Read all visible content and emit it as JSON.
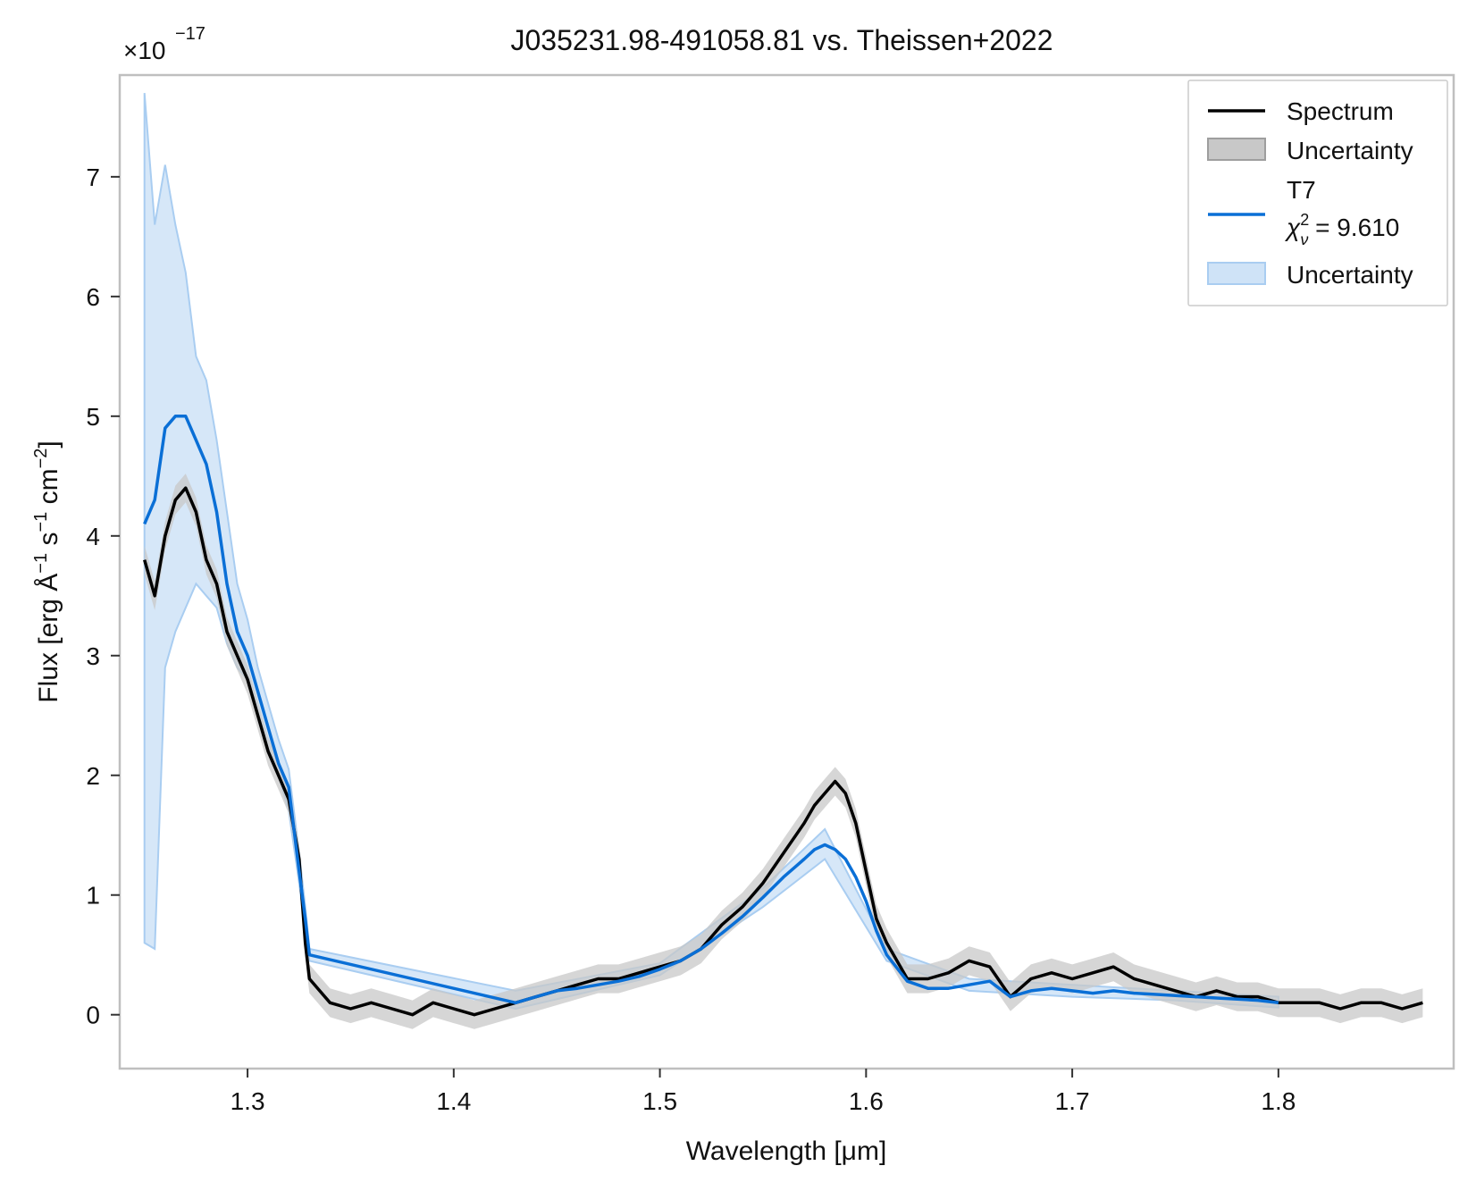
{
  "chart_data": {
    "type": "line",
    "title": "J035231.98-491058.81 vs. Theissen+2022",
    "xlabel": "Wavelength [μm]",
    "ylabel_main": "Flux [erg Å",
    "ylabel_exp1": "−1",
    "ylabel_s": " s",
    "ylabel_exp2": "−1",
    "ylabel_cm": " cm",
    "ylabel_exp3": "−2",
    "ylabel_close": "]",
    "offset_base": "×10",
    "offset_exp": "−17",
    "xlim": [
      1.238,
      1.885
    ],
    "ylim": [
      -0.45,
      7.85
    ],
    "x_ticks": [
      1.3,
      1.4,
      1.5,
      1.6,
      1.7,
      1.8
    ],
    "x_tick_labels": [
      "1.3",
      "1.4",
      "1.5",
      "1.6",
      "1.7",
      "1.8"
    ],
    "y_ticks": [
      0,
      1,
      2,
      3,
      4,
      5,
      6,
      7
    ],
    "y_tick_labels": [
      "0",
      "1",
      "2",
      "3",
      "4",
      "5",
      "6",
      "7"
    ],
    "grid": false,
    "legend_position": "top-right",
    "legend": {
      "spectrum": "Spectrum",
      "spectrum_unc": "Uncertainty",
      "model": "T7",
      "chi_symbol": "χ",
      "chi_sup": "2",
      "chi_sub": "ν",
      "chi_value": " = 9.610",
      "model_unc": "Uncertainty"
    },
    "colors": {
      "spectrum": "#000000",
      "spectrum_band": "#9e9e9e",
      "model": "#0a6fd6",
      "model_band": "#a9cdf1",
      "axes": "#bfbfbf"
    },
    "series": [
      {
        "name": "Spectrum",
        "x": [
          1.25,
          1.255,
          1.26,
          1.265,
          1.27,
          1.275,
          1.28,
          1.285,
          1.29,
          1.295,
          1.3,
          1.305,
          1.31,
          1.315,
          1.32,
          1.325,
          1.328,
          1.33,
          1.335,
          1.34,
          1.35,
          1.36,
          1.37,
          1.38,
          1.39,
          1.4,
          1.41,
          1.42,
          1.43,
          1.44,
          1.45,
          1.46,
          1.47,
          1.48,
          1.49,
          1.5,
          1.51,
          1.52,
          1.53,
          1.54,
          1.55,
          1.56,
          1.57,
          1.575,
          1.58,
          1.585,
          1.59,
          1.595,
          1.6,
          1.605,
          1.61,
          1.62,
          1.63,
          1.64,
          1.65,
          1.66,
          1.67,
          1.68,
          1.69,
          1.7,
          1.71,
          1.72,
          1.73,
          1.74,
          1.75,
          1.76,
          1.77,
          1.78,
          1.79,
          1.8,
          1.81,
          1.82,
          1.83,
          1.84,
          1.85,
          1.86,
          1.87
        ],
        "y": [
          3.8,
          3.5,
          4.0,
          4.3,
          4.4,
          4.2,
          3.8,
          3.6,
          3.2,
          3.0,
          2.8,
          2.5,
          2.2,
          2.0,
          1.8,
          1.3,
          0.6,
          0.3,
          0.2,
          0.1,
          0.05,
          0.1,
          0.05,
          0.0,
          0.1,
          0.05,
          0.0,
          0.05,
          0.1,
          0.15,
          0.2,
          0.25,
          0.3,
          0.3,
          0.35,
          0.4,
          0.45,
          0.55,
          0.75,
          0.9,
          1.1,
          1.35,
          1.6,
          1.75,
          1.85,
          1.95,
          1.85,
          1.6,
          1.2,
          0.8,
          0.6,
          0.3,
          0.3,
          0.35,
          0.45,
          0.4,
          0.15,
          0.3,
          0.35,
          0.3,
          0.35,
          0.4,
          0.3,
          0.25,
          0.2,
          0.15,
          0.2,
          0.15,
          0.15,
          0.1,
          0.1,
          0.1,
          0.05,
          0.1,
          0.1,
          0.05,
          0.1
        ]
      },
      {
        "name": "T7",
        "x": [
          1.25,
          1.255,
          1.26,
          1.265,
          1.27,
          1.275,
          1.28,
          1.285,
          1.29,
          1.295,
          1.3,
          1.305,
          1.31,
          1.315,
          1.32,
          1.325,
          1.328,
          1.33,
          1.43,
          1.44,
          1.45,
          1.46,
          1.47,
          1.48,
          1.49,
          1.5,
          1.51,
          1.52,
          1.53,
          1.54,
          1.55,
          1.56,
          1.57,
          1.575,
          1.58,
          1.585,
          1.59,
          1.595,
          1.6,
          1.605,
          1.61,
          1.62,
          1.63,
          1.64,
          1.65,
          1.66,
          1.67,
          1.68,
          1.69,
          1.7,
          1.71,
          1.72,
          1.73,
          1.74,
          1.75,
          1.76,
          1.77,
          1.78,
          1.79,
          1.8
        ],
        "y": [
          4.1,
          4.3,
          4.9,
          5.0,
          5.0,
          4.8,
          4.6,
          4.2,
          3.6,
          3.2,
          3.0,
          2.7,
          2.4,
          2.1,
          1.9,
          1.2,
          0.8,
          0.5,
          0.1,
          0.15,
          0.2,
          0.22,
          0.25,
          0.28,
          0.32,
          0.38,
          0.45,
          0.55,
          0.68,
          0.82,
          0.98,
          1.15,
          1.3,
          1.38,
          1.42,
          1.38,
          1.3,
          1.15,
          0.95,
          0.7,
          0.5,
          0.28,
          0.22,
          0.22,
          0.25,
          0.28,
          0.15,
          0.2,
          0.22,
          0.2,
          0.18,
          0.2,
          0.18,
          0.17,
          0.16,
          0.15,
          0.14,
          0.13,
          0.12,
          0.1
        ]
      }
    ],
    "model_uncertainty_band": {
      "x": [
        1.25,
        1.255,
        1.26,
        1.265,
        1.27,
        1.275,
        1.28,
        1.285,
        1.29,
        1.295,
        1.3,
        1.305,
        1.31,
        1.315,
        1.32,
        1.325,
        1.328,
        1.33,
        1.43,
        1.5,
        1.55,
        1.58,
        1.61,
        1.65,
        1.7,
        1.75,
        1.8
      ],
      "lower": [
        0.6,
        0.55,
        2.9,
        3.2,
        3.4,
        3.6,
        3.5,
        3.4,
        3.1,
        2.9,
        2.8,
        2.5,
        2.2,
        2.0,
        1.7,
        1.1,
        0.7,
        0.45,
        0.05,
        0.33,
        0.9,
        1.3,
        0.45,
        0.2,
        0.15,
        0.12,
        0.06
      ],
      "upper": [
        7.7,
        6.6,
        7.1,
        6.6,
        6.2,
        5.5,
        5.3,
        4.8,
        4.2,
        3.6,
        3.3,
        2.9,
        2.6,
        2.3,
        2.05,
        1.35,
        0.9,
        0.55,
        0.2,
        0.43,
        1.06,
        1.55,
        0.55,
        0.3,
        0.25,
        0.2,
        0.15
      ]
    },
    "spectrum_uncertainty_halfwidth": 0.12
  }
}
